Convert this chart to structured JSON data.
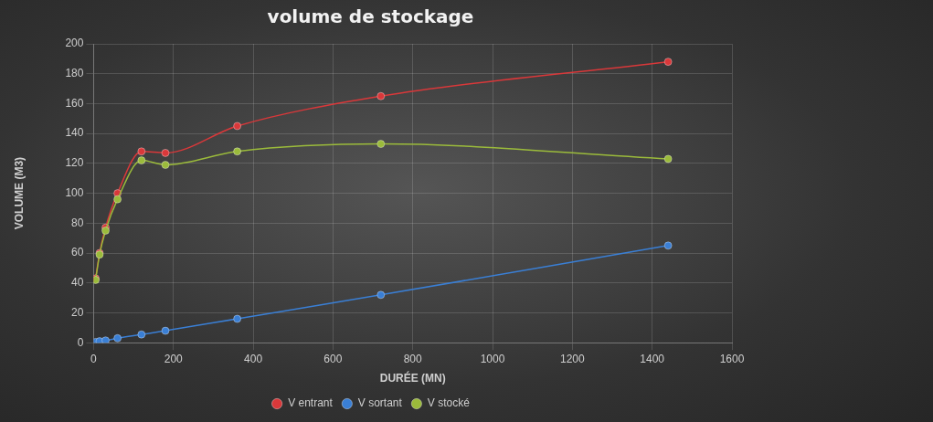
{
  "chart_data": {
    "type": "line",
    "title": "volume de stockage",
    "xlabel": "DURÉE (MN)",
    "ylabel": "VOLUME (M3)",
    "x": [
      5,
      15,
      30,
      60,
      120,
      180,
      360,
      720,
      1440
    ],
    "series": [
      {
        "name": "V entrant",
        "color": "#d9383a",
        "values": [
          43,
          60,
          77,
          100,
          128,
          127,
          145,
          165,
          188
        ]
      },
      {
        "name": "V sortant",
        "color": "#3a7fd5",
        "values": [
          0.5,
          1,
          1.5,
          3,
          5.5,
          8,
          16,
          32,
          65
        ]
      },
      {
        "name": "V stocké",
        "color": "#9bbb3b",
        "values": [
          42,
          59,
          75,
          96,
          122,
          119,
          128,
          133,
          123
        ]
      }
    ],
    "xlim": [
      0,
      1600
    ],
    "xticks": [
      0,
      200,
      400,
      600,
      800,
      1000,
      1200,
      1400,
      1600
    ],
    "ylim": [
      0,
      200
    ],
    "yticks": [
      0,
      20,
      40,
      60,
      80,
      100,
      120,
      140,
      160,
      180,
      200
    ],
    "grid": true,
    "legend": "bottom",
    "marker": "circle",
    "line_style": "solid"
  }
}
